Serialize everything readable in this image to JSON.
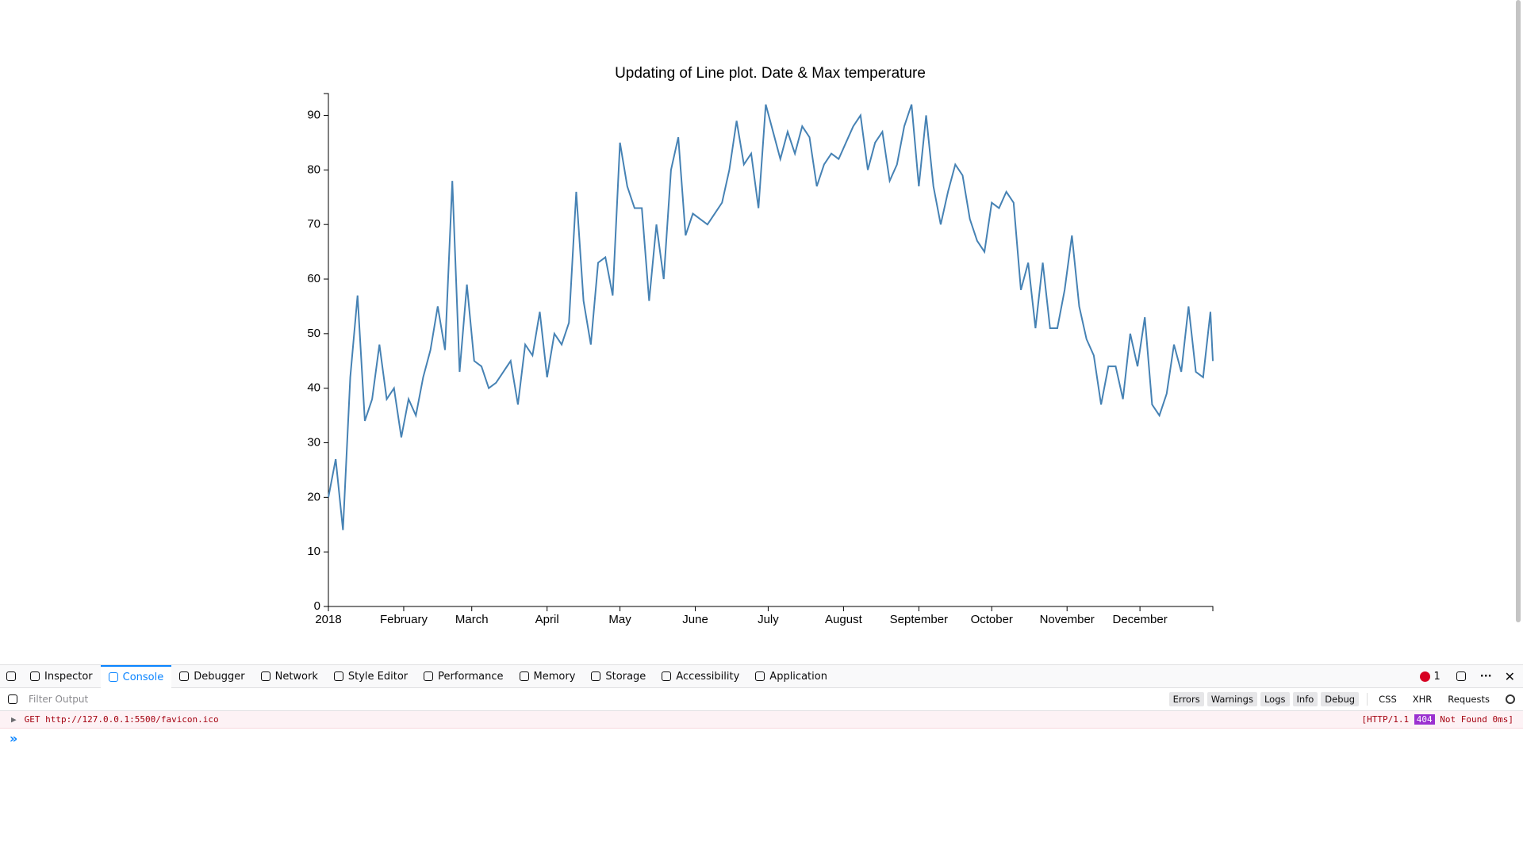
{
  "chart_data": {
    "type": "line",
    "title": "Updating of Line plot. Date & Max temperature",
    "x": [
      0,
      3,
      6,
      9,
      12,
      15,
      18,
      21,
      24,
      27,
      30,
      33,
      36,
      39,
      42,
      45,
      48,
      51,
      54,
      57,
      60,
      63,
      66,
      69,
      72,
      75,
      78,
      81,
      84,
      87,
      90,
      93,
      96,
      99,
      102,
      105,
      108,
      111,
      114,
      117,
      120,
      123,
      126,
      129,
      132,
      135,
      138,
      141,
      144,
      147,
      150,
      153,
      156,
      159,
      162,
      165,
      168,
      171,
      174,
      177,
      180,
      183,
      186,
      189,
      192,
      195,
      198,
      201,
      204,
      207,
      210,
      213,
      216,
      219,
      222,
      225,
      228,
      231,
      234,
      237,
      240,
      243,
      246,
      249,
      252,
      255,
      258,
      261,
      264,
      267,
      270,
      273,
      276,
      279,
      282,
      285,
      288,
      291,
      294,
      297,
      300,
      303,
      306,
      309,
      312,
      315,
      318,
      321,
      324,
      327,
      330,
      333,
      336,
      339,
      342,
      345,
      348,
      351,
      354,
      357,
      360,
      363,
      364
    ],
    "values": [
      20,
      27,
      14,
      42,
      57,
      34,
      38,
      48,
      38,
      40,
      31,
      38,
      35,
      42,
      47,
      55,
      47,
      78,
      43,
      59,
      45,
      44,
      40,
      41,
      43,
      45,
      37,
      48,
      46,
      54,
      42,
      50,
      48,
      52,
      76,
      56,
      48,
      63,
      64,
      57,
      85,
      77,
      73,
      73,
      56,
      70,
      60,
      80,
      86,
      68,
      72,
      71,
      70,
      72,
      74,
      80,
      89,
      81,
      83,
      73,
      92,
      87,
      82,
      87,
      83,
      88,
      86,
      77,
      81,
      83,
      82,
      85,
      88,
      90,
      80,
      85,
      87,
      78,
      81,
      88,
      92,
      77,
      90,
      77,
      70,
      76,
      81,
      79,
      71,
      67,
      65,
      74,
      73,
      76,
      74,
      58,
      63,
      51,
      63,
      51,
      51,
      58,
      68,
      55,
      49,
      46,
      37,
      44,
      44,
      38,
      50,
      44,
      53,
      37,
      35,
      39,
      48,
      43,
      55,
      43,
      42,
      54,
      45
    ],
    "color": "#4682b4",
    "xlim": [
      0,
      364
    ],
    "xticks": [
      {
        "value": 0,
        "label": "2018"
      },
      {
        "value": 31,
        "label": "February"
      },
      {
        "value": 59,
        "label": "March"
      },
      {
        "value": 90,
        "label": "April"
      },
      {
        "value": 120,
        "label": "May"
      },
      {
        "value": 151,
        "label": "June"
      },
      {
        "value": 181,
        "label": "July"
      },
      {
        "value": 212,
        "label": "August"
      },
      {
        "value": 243,
        "label": "September"
      },
      {
        "value": 273,
        "label": "October"
      },
      {
        "value": 304,
        "label": "November"
      },
      {
        "value": 334,
        "label": "December"
      }
    ],
    "ylim": [
      0,
      94
    ],
    "yticks": [
      0,
      10,
      20,
      30,
      40,
      50,
      60,
      70,
      80,
      90
    ]
  },
  "devtools": {
    "tabs": [
      "Inspector",
      "Console",
      "Debugger",
      "Network",
      "Style Editor",
      "Performance",
      "Memory",
      "Storage",
      "Accessibility",
      "Application"
    ],
    "error_count": "1",
    "filter_placeholder": "Filter Output",
    "filters": [
      "Errors",
      "Warnings",
      "Logs",
      "Info",
      "Debug"
    ],
    "extra_filters": [
      "CSS",
      "XHR",
      "Requests"
    ],
    "message": {
      "method": "GET",
      "url": "http://127.0.0.1:5500/favicon.ico",
      "status_prefix": "[HTTP/1.1",
      "status": "404",
      "status_text": "Not Found 0ms]"
    },
    "prompt": "»"
  }
}
